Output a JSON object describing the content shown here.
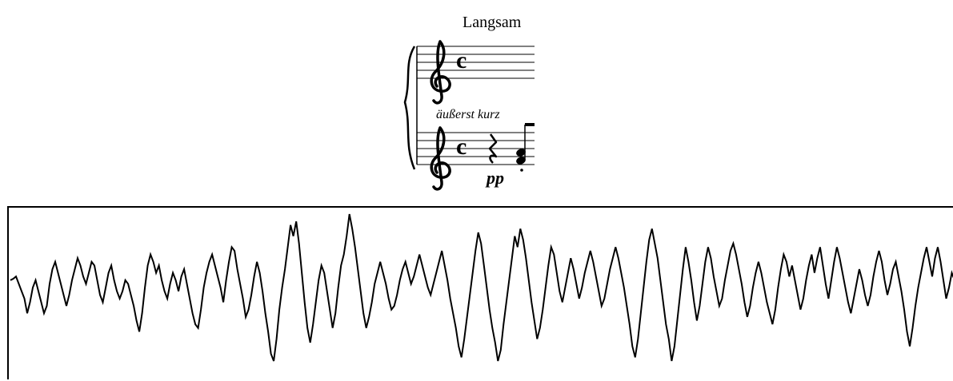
{
  "score": {
    "tempo_marking": "Langsam",
    "upper_staff": {
      "clef": "treble",
      "time_signature": "C"
    },
    "expression_text": "äußerst kurz",
    "lower_staff": {
      "clef": "treble",
      "time_signature": "C",
      "events": [
        "quarter-rest",
        "eighth-note-chord-staccato"
      ]
    },
    "dynamic": "pp"
  },
  "waveform": {
    "description_colors": {
      "line": "#000000",
      "background": "#ffffff"
    },
    "samples": [
      0.1,
      0.12,
      0.15,
      0.05,
      -0.05,
      -0.15,
      -0.35,
      -0.2,
      0.0,
      0.1,
      -0.05,
      -0.2,
      -0.35,
      -0.25,
      0.05,
      0.25,
      0.35,
      0.2,
      0.05,
      -0.1,
      -0.25,
      -0.1,
      0.1,
      0.25,
      0.4,
      0.3,
      0.15,
      0.05,
      0.2,
      0.35,
      0.3,
      0.1,
      -0.1,
      -0.2,
      0.0,
      0.2,
      0.3,
      0.1,
      -0.05,
      -0.15,
      -0.05,
      0.1,
      0.05,
      -0.1,
      -0.25,
      -0.45,
      -0.6,
      -0.35,
      0.0,
      0.3,
      0.45,
      0.35,
      0.2,
      0.3,
      0.1,
      -0.05,
      -0.15,
      0.05,
      0.2,
      0.1,
      -0.05,
      0.15,
      0.25,
      0.05,
      -0.15,
      -0.35,
      -0.5,
      -0.55,
      -0.3,
      0.0,
      0.2,
      0.35,
      0.45,
      0.3,
      0.15,
      0.0,
      -0.2,
      0.1,
      0.35,
      0.55,
      0.5,
      0.25,
      0.05,
      -0.15,
      -0.4,
      -0.3,
      -0.1,
      0.15,
      0.35,
      0.2,
      -0.05,
      -0.35,
      -0.6,
      -0.9,
      -1.0,
      -0.7,
      -0.3,
      0.0,
      0.25,
      0.55,
      0.85,
      0.7,
      0.9,
      0.6,
      0.2,
      -0.2,
      -0.55,
      -0.75,
      -0.5,
      -0.2,
      0.1,
      0.3,
      0.2,
      -0.05,
      -0.3,
      -0.55,
      -0.35,
      0.0,
      0.3,
      0.45,
      0.7,
      1.0,
      0.8,
      0.55,
      0.25,
      -0.05,
      -0.35,
      -0.55,
      -0.4,
      -0.2,
      0.05,
      0.2,
      0.35,
      0.2,
      0.05,
      -0.15,
      -0.3,
      -0.25,
      -0.1,
      0.1,
      0.25,
      0.35,
      0.2,
      0.05,
      0.15,
      0.3,
      0.45,
      0.3,
      0.15,
      0.0,
      -0.1,
      0.05,
      0.2,
      0.35,
      0.5,
      0.3,
      0.1,
      -0.15,
      -0.35,
      -0.55,
      -0.8,
      -0.95,
      -0.7,
      -0.4,
      -0.1,
      0.2,
      0.5,
      0.75,
      0.6,
      0.3,
      0.0,
      -0.3,
      -0.55,
      -0.75,
      -1.0,
      -0.85,
      -0.5,
      -0.2,
      0.1,
      0.4,
      0.7,
      0.55,
      0.8,
      0.65,
      0.4,
      0.1,
      -0.2,
      -0.45,
      -0.7,
      -0.55,
      -0.3,
      0.0,
      0.3,
      0.55,
      0.45,
      0.2,
      -0.05,
      -0.2,
      0.0,
      0.2,
      0.4,
      0.25,
      0.05,
      -0.15,
      0.0,
      0.2,
      0.35,
      0.5,
      0.35,
      0.15,
      -0.05,
      -0.25,
      -0.15,
      0.05,
      0.25,
      0.4,
      0.55,
      0.4,
      0.2,
      0.0,
      -0.25,
      -0.5,
      -0.8,
      -0.95,
      -0.7,
      -0.35,
      0.0,
      0.35,
      0.65,
      0.8,
      0.6,
      0.4,
      0.1,
      -0.2,
      -0.5,
      -0.7,
      -1.0,
      -0.8,
      -0.45,
      -0.1,
      0.25,
      0.55,
      0.35,
      0.1,
      -0.2,
      -0.45,
      -0.25,
      0.05,
      0.35,
      0.55,
      0.4,
      0.15,
      -0.05,
      -0.25,
      -0.15,
      0.1,
      0.3,
      0.5,
      0.6,
      0.45,
      0.25,
      0.05,
      -0.2,
      -0.4,
      -0.25,
      0.0,
      0.2,
      0.35,
      0.2,
      0.0,
      -0.2,
      -0.35,
      -0.5,
      -0.3,
      0.0,
      0.25,
      0.45,
      0.35,
      0.15,
      0.3,
      0.1,
      -0.1,
      -0.3,
      -0.15,
      0.1,
      0.3,
      0.45,
      0.2,
      0.4,
      0.55,
      0.3,
      0.05,
      -0.15,
      0.1,
      0.35,
      0.55,
      0.4,
      0.2,
      0.0,
      -0.2,
      -0.35,
      -0.15,
      0.05,
      0.25,
      0.1,
      -0.1,
      -0.25,
      -0.1,
      0.15,
      0.35,
      0.5,
      0.35,
      0.1,
      -0.1,
      0.05,
      0.25,
      0.35,
      0.15,
      -0.05,
      -0.3,
      -0.6,
      -0.8,
      -0.55,
      -0.25,
      0.0,
      0.2,
      0.4,
      0.55,
      0.35,
      0.15,
      0.4,
      0.55,
      0.35,
      0.1,
      -0.15,
      0.0,
      0.2,
      0.1
    ]
  }
}
